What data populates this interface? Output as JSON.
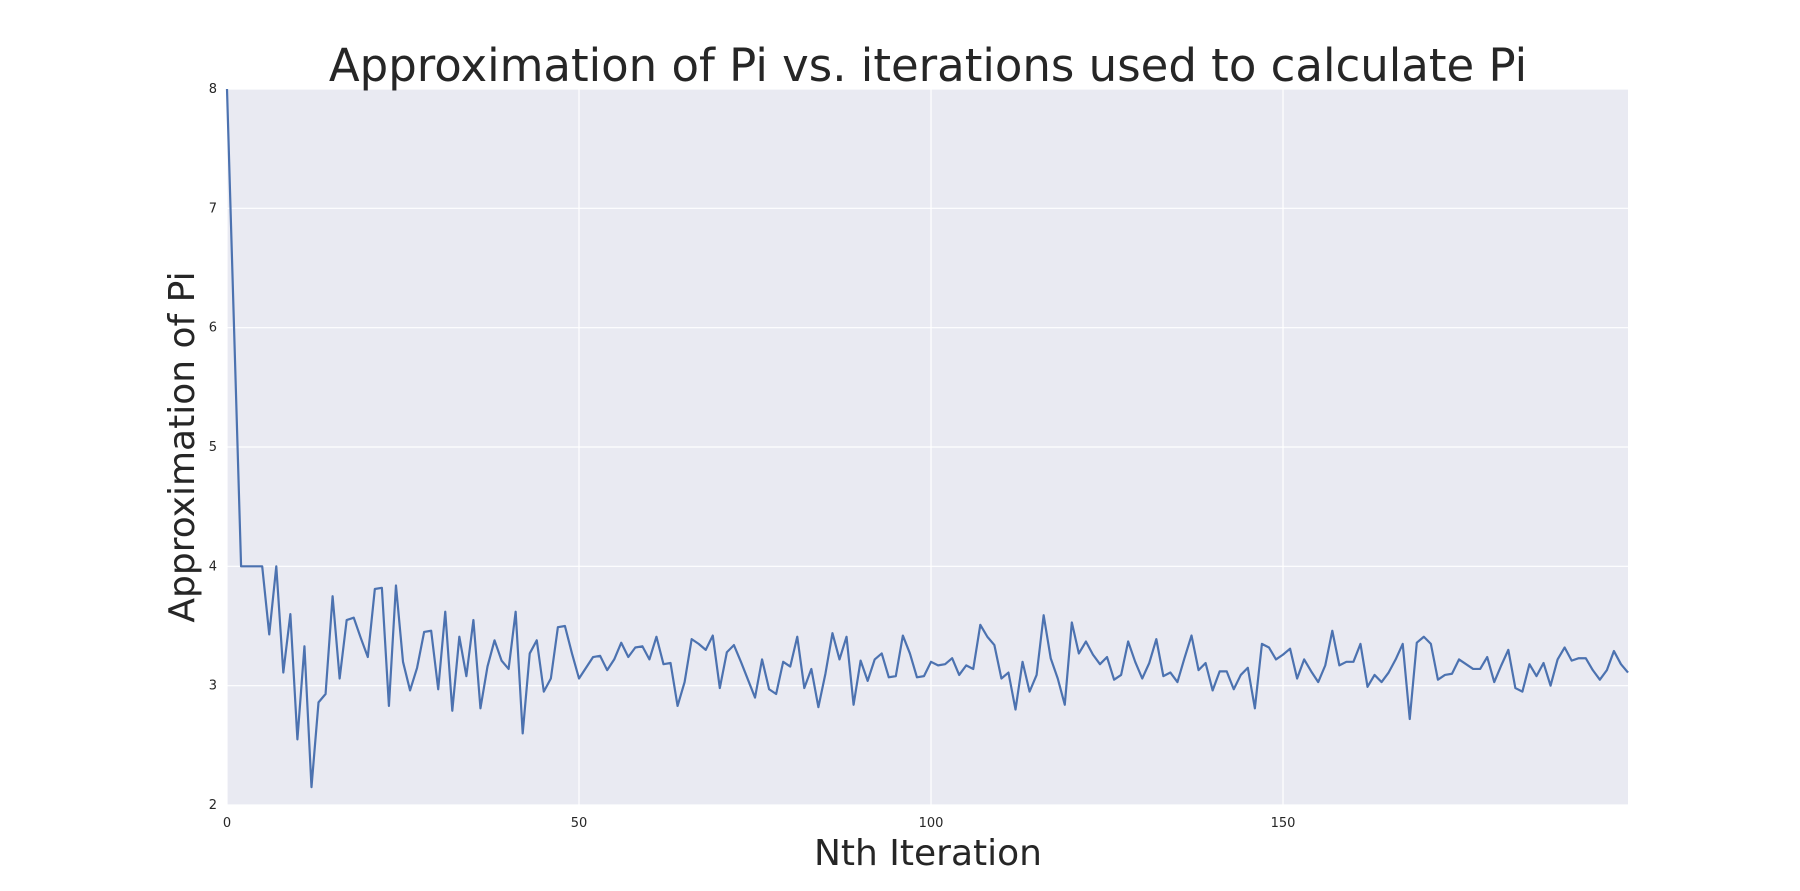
{
  "colors": {
    "plot_background": "#e9eaf2",
    "grid": "#ffffff",
    "line": "#4c72b0",
    "text": "#262626"
  },
  "chart_data": {
    "type": "line",
    "title": "Approximation of Pi vs. iterations used to calculate Pi",
    "xlabel": "Nth Iteration",
    "ylabel": "Approximation of Pi",
    "xlim": [
      0,
      199
    ],
    "ylim": [
      2,
      8
    ],
    "xticks": [
      0,
      50,
      100,
      150
    ],
    "yticks": [
      2,
      3,
      4,
      5,
      6,
      7,
      8
    ],
    "grid": true,
    "legend": "none",
    "series": [
      {
        "values": [
          8.0,
          6.0,
          4.0,
          4.0,
          4.0,
          4.0,
          3.43,
          4.0,
          3.11,
          3.6,
          2.55,
          3.33,
          2.15,
          2.86,
          2.93,
          3.75,
          3.06,
          3.55,
          3.57,
          3.4,
          3.24,
          3.81,
          3.82,
          2.83,
          3.84,
          3.2,
          2.96,
          3.15,
          3.45,
          3.46,
          2.97,
          3.62,
          2.79,
          3.41,
          3.08,
          3.55,
          2.81,
          3.16,
          3.38,
          3.21,
          3.14,
          3.62,
          2.6,
          3.27,
          3.38,
          2.95,
          3.06,
          3.49,
          3.5,
          3.27,
          3.06,
          3.15,
          3.24,
          3.25,
          3.13,
          3.22,
          3.36,
          3.24,
          3.32,
          3.33,
          3.22,
          3.41,
          3.18,
          3.19,
          2.83,
          3.03,
          3.39,
          3.35,
          3.3,
          3.42,
          2.98,
          3.28,
          3.34,
          3.2,
          3.05,
          2.9,
          3.22,
          2.97,
          2.93,
          3.2,
          3.16,
          3.41,
          2.98,
          3.14,
          2.82,
          3.1,
          3.44,
          3.22,
          3.41,
          2.84,
          3.21,
          3.04,
          3.22,
          3.27,
          3.07,
          3.08,
          3.42,
          3.27,
          3.07,
          3.08,
          3.2,
          3.17,
          3.18,
          3.23,
          3.09,
          3.17,
          3.14,
          3.51,
          3.41,
          3.34,
          3.06,
          3.11,
          2.8,
          3.2,
          2.95,
          3.09,
          3.59,
          3.23,
          3.06,
          2.84,
          3.53,
          3.27,
          3.37,
          3.26,
          3.18,
          3.24,
          3.05,
          3.09,
          3.37,
          3.2,
          3.06,
          3.19,
          3.39,
          3.08,
          3.11,
          3.03,
          3.23,
          3.42,
          3.13,
          3.19,
          2.96,
          3.12,
          3.12,
          2.97,
          3.09,
          3.15,
          2.81,
          3.35,
          3.32,
          3.22,
          3.26,
          3.31,
          3.06,
          3.22,
          3.12,
          3.03,
          3.17,
          3.46,
          3.17,
          3.2,
          3.2,
          3.35,
          2.99,
          3.09,
          3.03,
          3.11,
          3.22,
          3.35,
          2.72,
          3.36,
          3.41,
          3.35,
          3.05,
          3.09,
          3.1,
          3.22,
          3.18,
          3.14,
          3.14,
          3.24,
          3.03,
          3.17,
          3.3,
          2.98,
          2.95,
          3.18,
          3.08,
          3.19,
          3.0,
          3.22,
          3.32,
          3.21,
          3.23,
          3.23,
          3.13,
          3.05,
          3.13,
          3.29,
          3.18,
          3.11
        ]
      }
    ]
  }
}
